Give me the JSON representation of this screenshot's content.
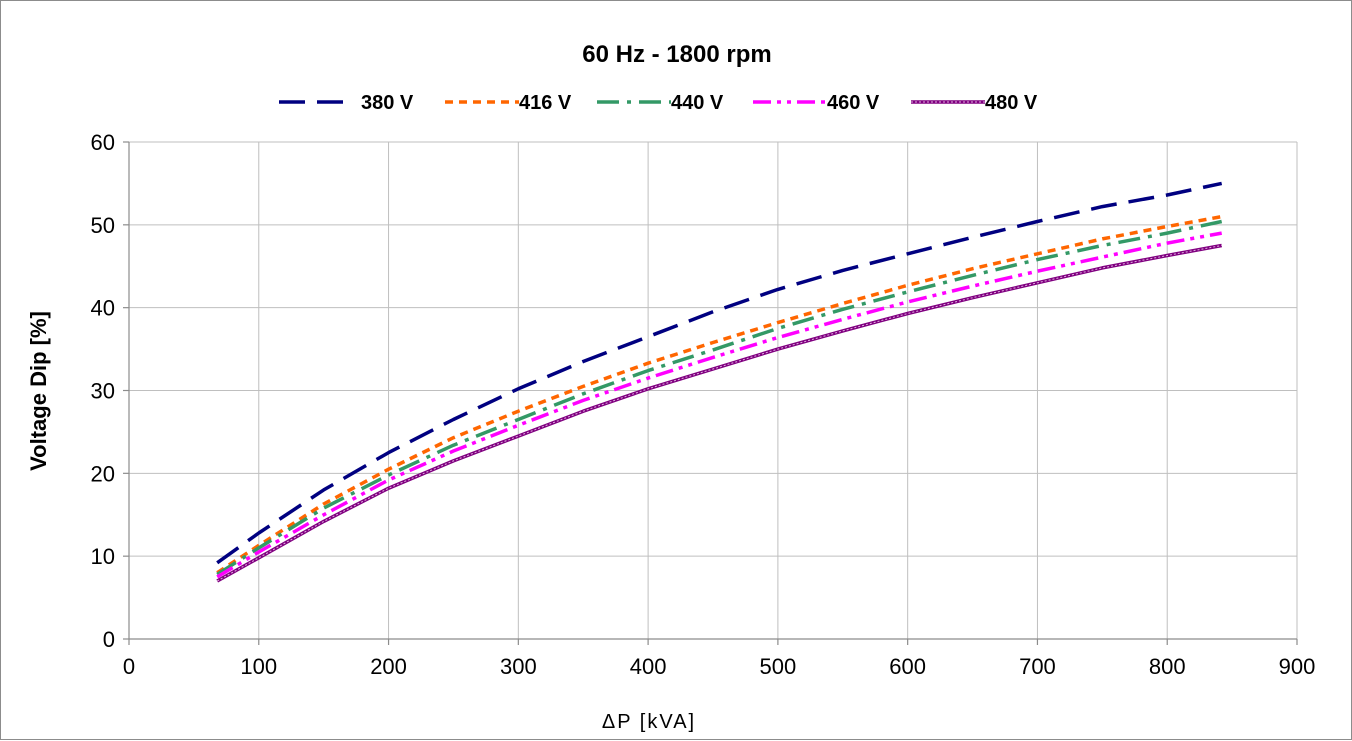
{
  "chart_data": {
    "type": "line",
    "title": "60 Hz - 1800 rpm",
    "xlabel": "ΔP [kVA]",
    "ylabel": "Voltage Dip [%]",
    "xlim": [
      0,
      900
    ],
    "ylim": [
      0,
      60
    ],
    "xticks": [
      "0",
      "100",
      "200",
      "300",
      "400",
      "500",
      "600",
      "700",
      "800",
      "900"
    ],
    "yticks": [
      "0",
      "10",
      "20",
      "30",
      "40",
      "50",
      "60"
    ],
    "grid": true,
    "legend_position": "top",
    "series": [
      {
        "name": "380 V",
        "color": "#000080",
        "dash": "long-dash",
        "x": [
          68,
          100,
          150,
          200,
          250,
          300,
          350,
          400,
          450,
          500,
          550,
          600,
          650,
          700,
          750,
          800,
          842
        ],
        "y": [
          9.2,
          12.8,
          18.0,
          22.5,
          26.5,
          30.2,
          33.5,
          36.5,
          39.5,
          42.2,
          44.5,
          46.5,
          48.5,
          50.4,
          52.2,
          53.6,
          55.0
        ]
      },
      {
        "name": "416 V",
        "color": "#ff6600",
        "dash": "short-dash",
        "x": [
          68,
          100,
          150,
          200,
          250,
          300,
          350,
          400,
          450,
          500,
          550,
          600,
          650,
          700,
          750,
          800,
          842
        ],
        "y": [
          8.0,
          11.3,
          16.3,
          20.5,
          24.3,
          27.5,
          30.5,
          33.3,
          35.8,
          38.2,
          40.5,
          42.7,
          44.7,
          46.5,
          48.3,
          49.8,
          51.0
        ]
      },
      {
        "name": "440 V",
        "color": "#339966",
        "dash": "dash-dot",
        "x": [
          68,
          100,
          150,
          200,
          250,
          300,
          350,
          400,
          450,
          500,
          550,
          600,
          650,
          700,
          750,
          800,
          842
        ],
        "y": [
          7.8,
          11.0,
          15.8,
          19.8,
          23.4,
          26.5,
          29.6,
          32.4,
          34.9,
          37.5,
          39.8,
          41.9,
          43.9,
          45.8,
          47.5,
          49.0,
          50.4
        ]
      },
      {
        "name": "460 V",
        "color": "#ff00ff",
        "dash": "dash-dot-dot",
        "x": [
          68,
          100,
          150,
          200,
          250,
          300,
          350,
          400,
          450,
          500,
          550,
          600,
          650,
          700,
          750,
          800,
          842
        ],
        "y": [
          7.5,
          10.5,
          15.0,
          19.2,
          22.7,
          25.8,
          28.8,
          31.5,
          34.0,
          36.4,
          38.6,
          40.7,
          42.6,
          44.4,
          46.1,
          47.8,
          49.0
        ]
      },
      {
        "name": "480 V",
        "color": "#800080",
        "dash": "solid-thick-fine",
        "x": [
          68,
          100,
          150,
          200,
          250,
          300,
          350,
          400,
          450,
          500,
          550,
          600,
          650,
          700,
          750,
          800,
          842
        ],
        "y": [
          7.0,
          9.8,
          14.2,
          18.2,
          21.5,
          24.5,
          27.5,
          30.2,
          32.6,
          35.0,
          37.2,
          39.3,
          41.2,
          43.0,
          44.8,
          46.3,
          47.5
        ]
      }
    ]
  }
}
